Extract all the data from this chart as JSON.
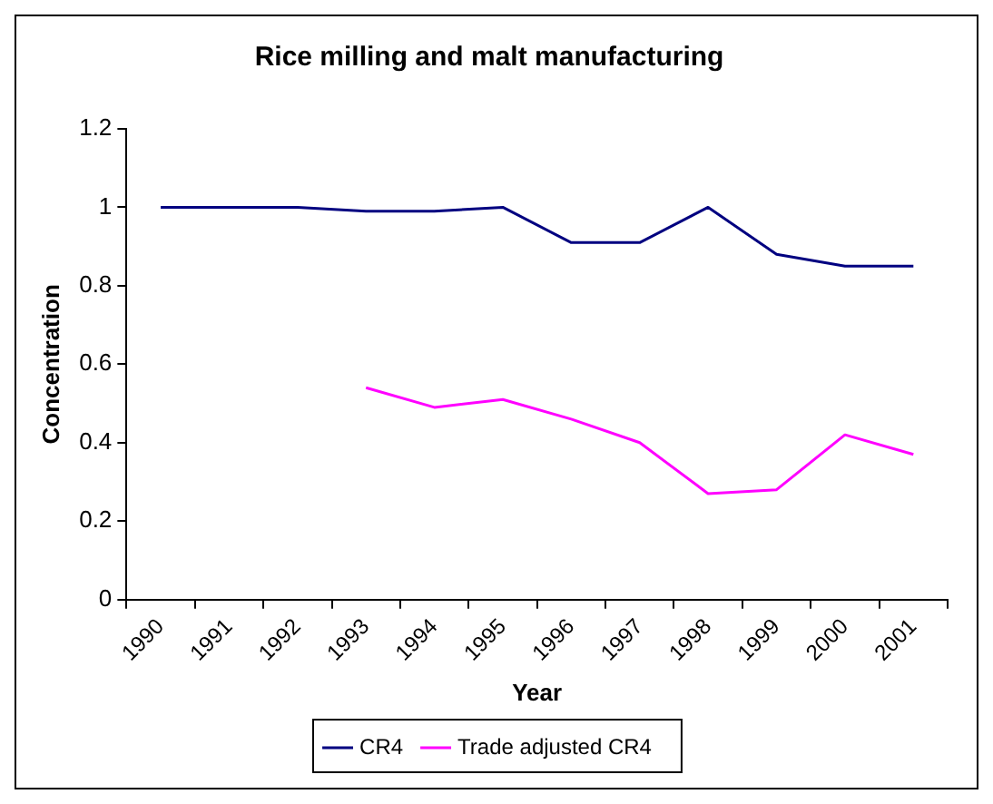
{
  "chart_data": {
    "type": "line",
    "title": "Rice milling and malt manufacturing",
    "xlabel": "Year",
    "ylabel": "Concentration",
    "categories": [
      "1990",
      "1991",
      "1992",
      "1993",
      "1994",
      "1995",
      "1996",
      "1997",
      "1998",
      "1999",
      "2000",
      "2001"
    ],
    "series": [
      {
        "name": "CR4",
        "color": "#000080",
        "values": [
          1,
          1,
          1,
          0.99,
          0.99,
          1,
          0.91,
          0.91,
          1,
          0.88,
          0.85,
          0.85
        ]
      },
      {
        "name": "Trade adjusted CR4",
        "color": "#ff00ff",
        "values": [
          null,
          null,
          null,
          0.54,
          0.49,
          0.51,
          0.46,
          0.4,
          0.27,
          0.28,
          0.42,
          0.37
        ]
      }
    ],
    "ylim": [
      0,
      1.2
    ],
    "yticks": [
      0,
      0.2,
      0.4,
      0.6,
      0.8,
      1,
      1.2
    ],
    "grid": false,
    "legend": "bottom",
    "marker": "none",
    "line_style": "solid"
  }
}
